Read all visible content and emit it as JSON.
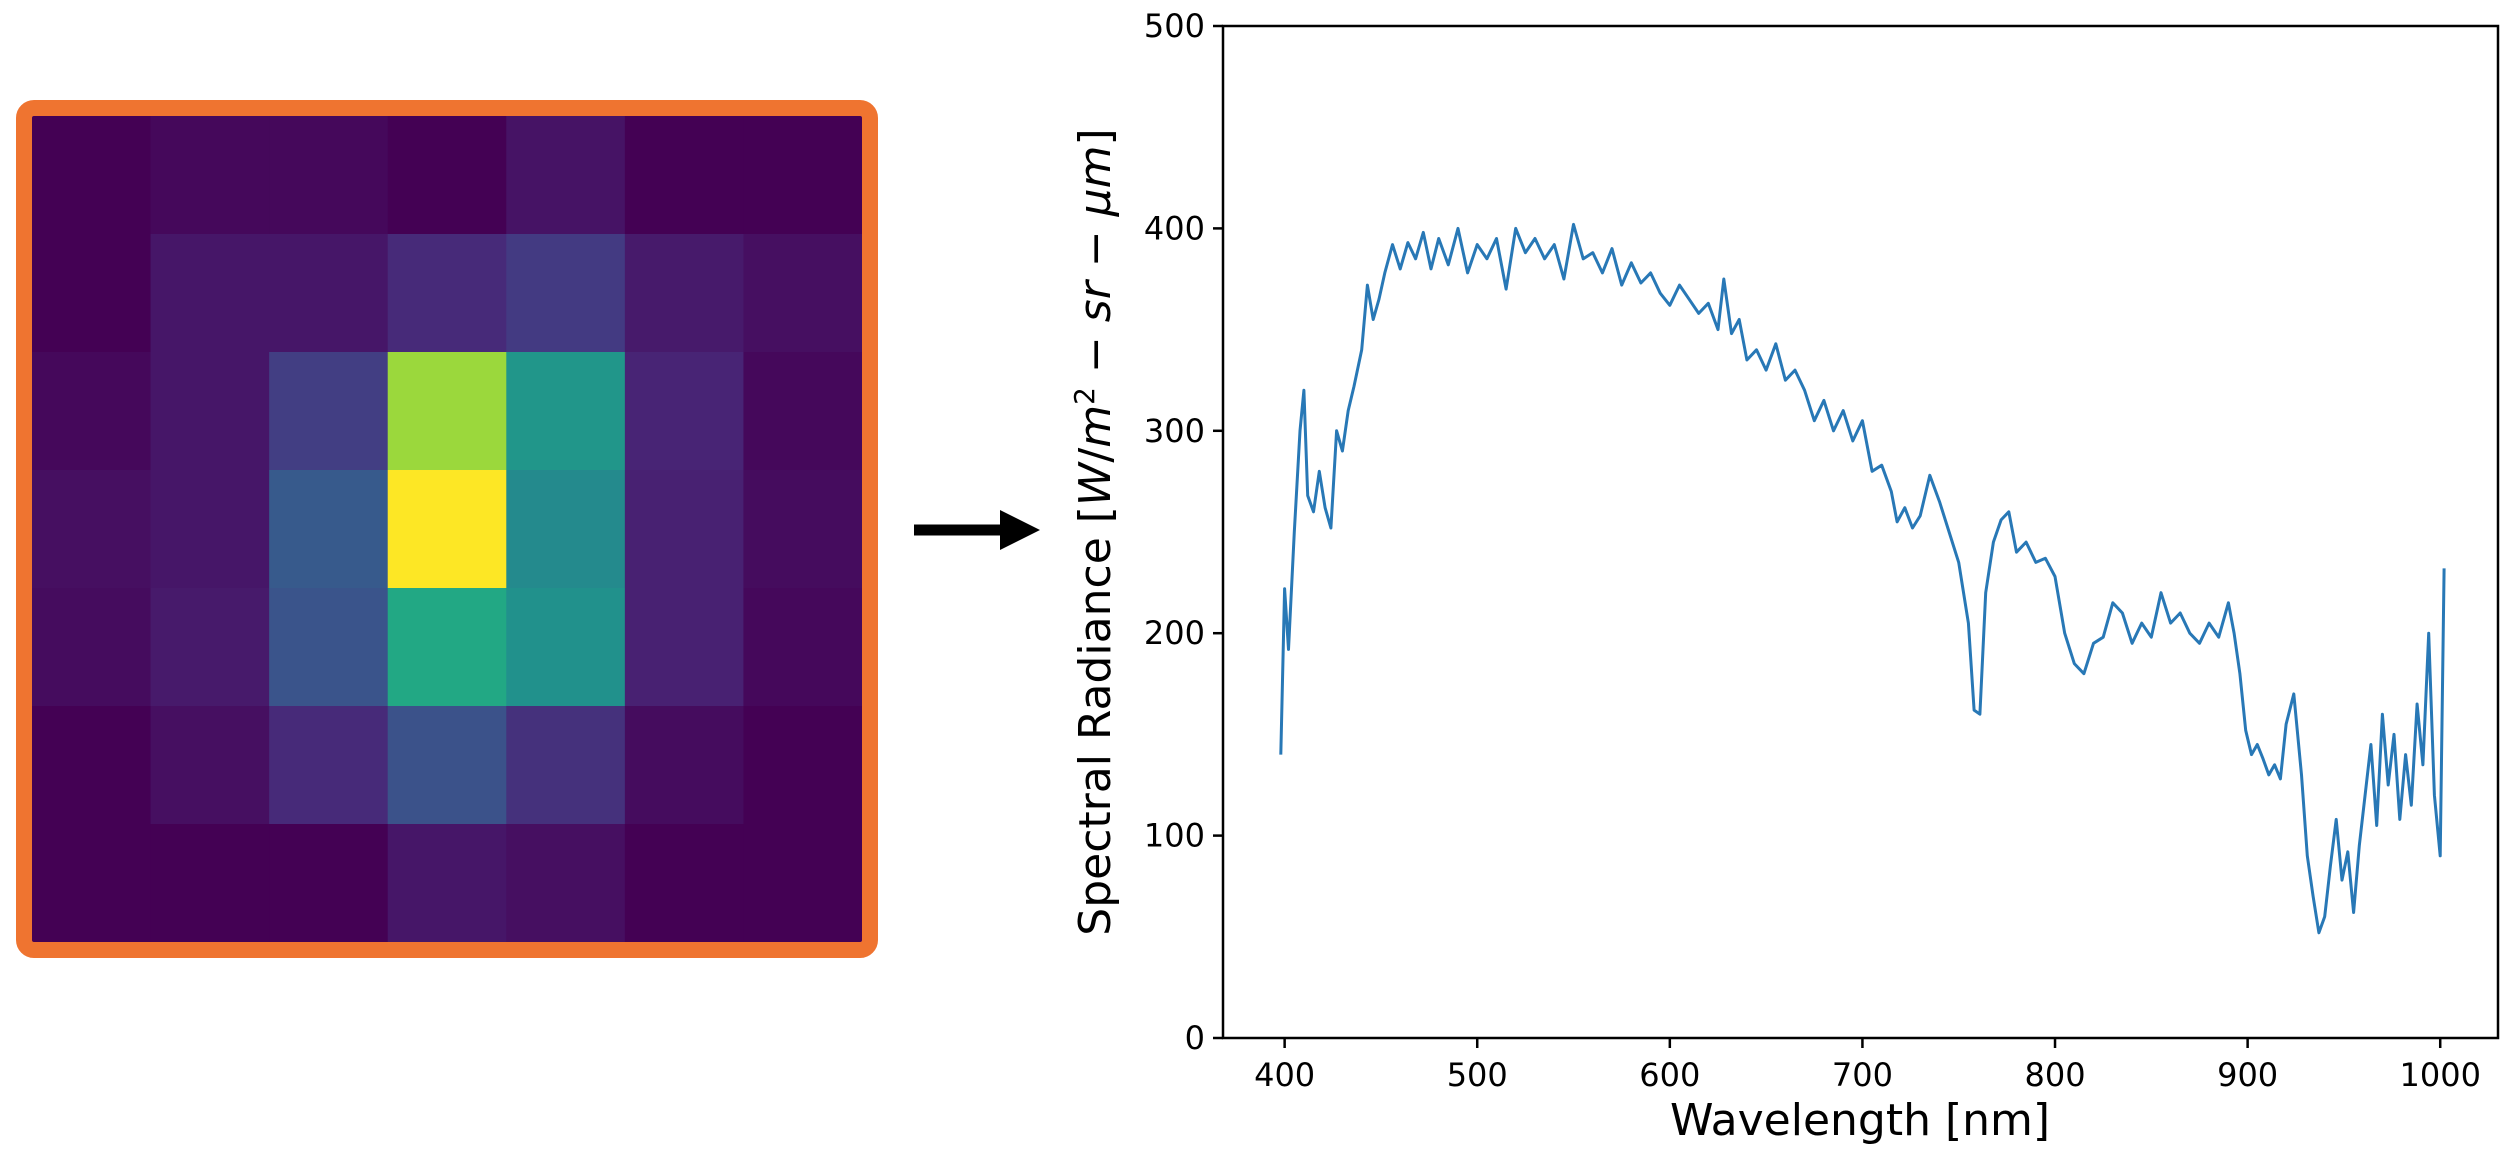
{
  "colors": {
    "frame": "#ef7430",
    "line": "#2878b6",
    "arrow": "#000000",
    "axis": "#000000",
    "heatmap_colormap": "viridis"
  },
  "heatmap": {
    "rows": 7,
    "cols": 7,
    "values": [
      [
        0.0,
        0.02,
        0.02,
        0.0,
        0.05,
        0.0,
        0.0
      ],
      [
        0.0,
        0.06,
        0.06,
        0.12,
        0.17,
        0.07,
        0.04
      ],
      [
        0.02,
        0.06,
        0.18,
        0.85,
        0.52,
        0.1,
        0.02
      ],
      [
        0.04,
        0.06,
        0.28,
        1.0,
        0.47,
        0.09,
        0.03
      ],
      [
        0.03,
        0.07,
        0.26,
        0.6,
        0.5,
        0.09,
        0.02
      ],
      [
        0.0,
        0.04,
        0.12,
        0.25,
        0.14,
        0.03,
        0.0
      ],
      [
        0.0,
        0.0,
        0.0,
        0.06,
        0.04,
        0.0,
        0.0
      ]
    ]
  },
  "arrow": {
    "icon": "right-arrow-icon"
  },
  "chart_data": {
    "type": "line",
    "title": "",
    "xlabel": "Wavelength [nm]",
    "ylabel": "Spectral Radiance [W/m² − sr − μm]",
    "ylabel_parts": {
      "prefix": "Spectral Radiance [",
      "W": "W",
      "slash": "/",
      "m": "m",
      "exponent": "2",
      "dash1": " − ",
      "sr": "sr",
      "dash2": " − ",
      "um": "μm",
      "suffix": "]"
    },
    "xlim": [
      368,
      1030
    ],
    "ylim": [
      0,
      500
    ],
    "xticks": [
      400,
      500,
      600,
      700,
      800,
      900,
      1000
    ],
    "yticks": [
      0,
      100,
      200,
      300,
      400,
      500
    ],
    "grid": false,
    "series": [
      {
        "x": [
          398,
          400,
          402,
          405,
          408,
          410,
          412,
          415,
          418,
          421,
          424,
          427,
          430,
          433,
          436,
          440,
          443,
          446,
          449,
          452,
          456,
          460,
          464,
          468,
          472,
          476,
          480,
          485,
          490,
          495,
          500,
          505,
          510,
          515,
          520,
          525,
          530,
          535,
          540,
          545,
          550,
          555,
          560,
          565,
          570,
          575,
          580,
          585,
          590,
          595,
          600,
          605,
          610,
          615,
          620,
          625,
          628,
          632,
          636,
          640,
          645,
          650,
          655,
          660,
          665,
          670,
          675,
          680,
          685,
          690,
          695,
          700,
          705,
          710,
          715,
          718,
          722,
          726,
          730,
          735,
          740,
          745,
          750,
          755,
          758,
          761,
          764,
          768,
          772,
          776,
          780,
          785,
          790,
          795,
          800,
          805,
          810,
          815,
          820,
          825,
          830,
          835,
          840,
          845,
          850,
          855,
          860,
          865,
          870,
          875,
          880,
          885,
          890,
          893,
          896,
          899,
          902,
          905,
          908,
          911,
          914,
          917,
          920,
          924,
          928,
          931,
          934,
          937,
          940,
          943,
          946,
          949,
          952,
          955,
          958,
          961,
          964,
          967,
          970,
          973,
          976,
          979,
          982,
          985,
          988,
          991,
          994,
          997,
          1000,
          1002
        ],
        "y": [
          140,
          222,
          192,
          250,
          300,
          320,
          268,
          260,
          280,
          262,
          252,
          300,
          290,
          310,
          322,
          340,
          372,
          355,
          365,
          378,
          392,
          380,
          393,
          385,
          398,
          380,
          395,
          382,
          400,
          378,
          392,
          385,
          395,
          370,
          400,
          388,
          395,
          385,
          392,
          375,
          402,
          385,
          388,
          378,
          390,
          372,
          383,
          373,
          378,
          368,
          362,
          372,
          365,
          358,
          363,
          350,
          375,
          348,
          355,
          335,
          340,
          330,
          343,
          325,
          330,
          320,
          305,
          315,
          300,
          310,
          295,
          305,
          280,
          283,
          270,
          255,
          262,
          252,
          258,
          278,
          265,
          250,
          235,
          205,
          162,
          160,
          220,
          245,
          256,
          260,
          240,
          245,
          235,
          237,
          228,
          200,
          185,
          180,
          195,
          198,
          215,
          210,
          195,
          205,
          198,
          220,
          205,
          210,
          200,
          195,
          205,
          198,
          215,
          200,
          180,
          152,
          140,
          145,
          138,
          130,
          135,
          128,
          155,
          170,
          130,
          90,
          70,
          52,
          60,
          85,
          108,
          78,
          92,
          62,
          95,
          120,
          145,
          105,
          160,
          125,
          150,
          108,
          140,
          115,
          165,
          135,
          200,
          120,
          90,
          232
        ]
      }
    ]
  }
}
